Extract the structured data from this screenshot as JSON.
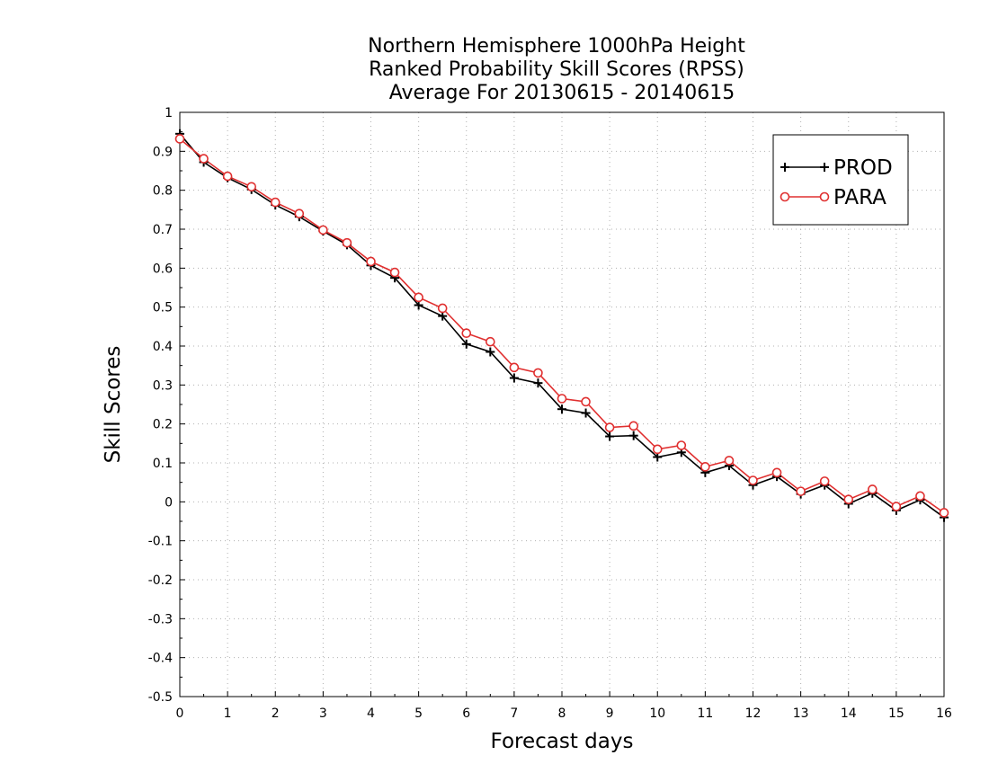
{
  "chart_data": {
    "type": "line",
    "title_lines": [
      "Northern Hemisphere 1000hPa Height",
      "Ranked Probability Skill Scores (RPSS)",
      "Average For 20130615 - 20140615"
    ],
    "xlabel": "Forecast days",
    "ylabel": "Skill Scores",
    "xlim": [
      0,
      16
    ],
    "ylim": [
      -0.5,
      1
    ],
    "x_ticks": [
      "0",
      "1",
      "2",
      "3",
      "4",
      "5",
      "6",
      "7",
      "8",
      "9",
      "10",
      "11",
      "12",
      "13",
      "14",
      "15",
      "16"
    ],
    "y_ticks": [
      "1",
      "0.9",
      "0.8",
      "0.7",
      "0.6",
      "0.5",
      "0.4",
      "0.3",
      "0.2",
      "0.1",
      "0",
      "-0.1",
      "-0.2",
      "-0.3",
      "-0.4",
      "-0.5"
    ],
    "grid": true,
    "legend_position": "top-right",
    "x": [
      0,
      0.5,
      1,
      1.5,
      2,
      2.5,
      3,
      3.5,
      4,
      4.5,
      5,
      5.5,
      6,
      6.5,
      7,
      7.5,
      8,
      8.5,
      9,
      9.5,
      10,
      10.5,
      11,
      11.5,
      12,
      12.5,
      13,
      13.5,
      14,
      14.5,
      15,
      15.5,
      16
    ],
    "series": [
      {
        "name": "PROD",
        "color": "#000000",
        "marker": "plus",
        "values": [
          0.945,
          0.872,
          0.832,
          0.802,
          0.762,
          0.732,
          0.695,
          0.66,
          0.607,
          0.575,
          0.505,
          0.477,
          0.405,
          0.385,
          0.318,
          0.305,
          0.238,
          0.228,
          0.168,
          0.17,
          0.115,
          0.127,
          0.075,
          0.093,
          0.043,
          0.065,
          0.02,
          0.043,
          -0.005,
          0.022,
          -0.022,
          0.005,
          -0.04
        ]
      },
      {
        "name": "PARA",
        "color": "#e03030",
        "marker": "circle",
        "values": [
          0.932,
          0.881,
          0.836,
          0.809,
          0.769,
          0.74,
          0.698,
          0.665,
          0.617,
          0.589,
          0.525,
          0.497,
          0.433,
          0.411,
          0.345,
          0.331,
          0.265,
          0.257,
          0.191,
          0.195,
          0.135,
          0.145,
          0.09,
          0.106,
          0.055,
          0.075,
          0.027,
          0.053,
          0.006,
          0.032,
          -0.012,
          0.015,
          -0.028
        ]
      }
    ]
  }
}
